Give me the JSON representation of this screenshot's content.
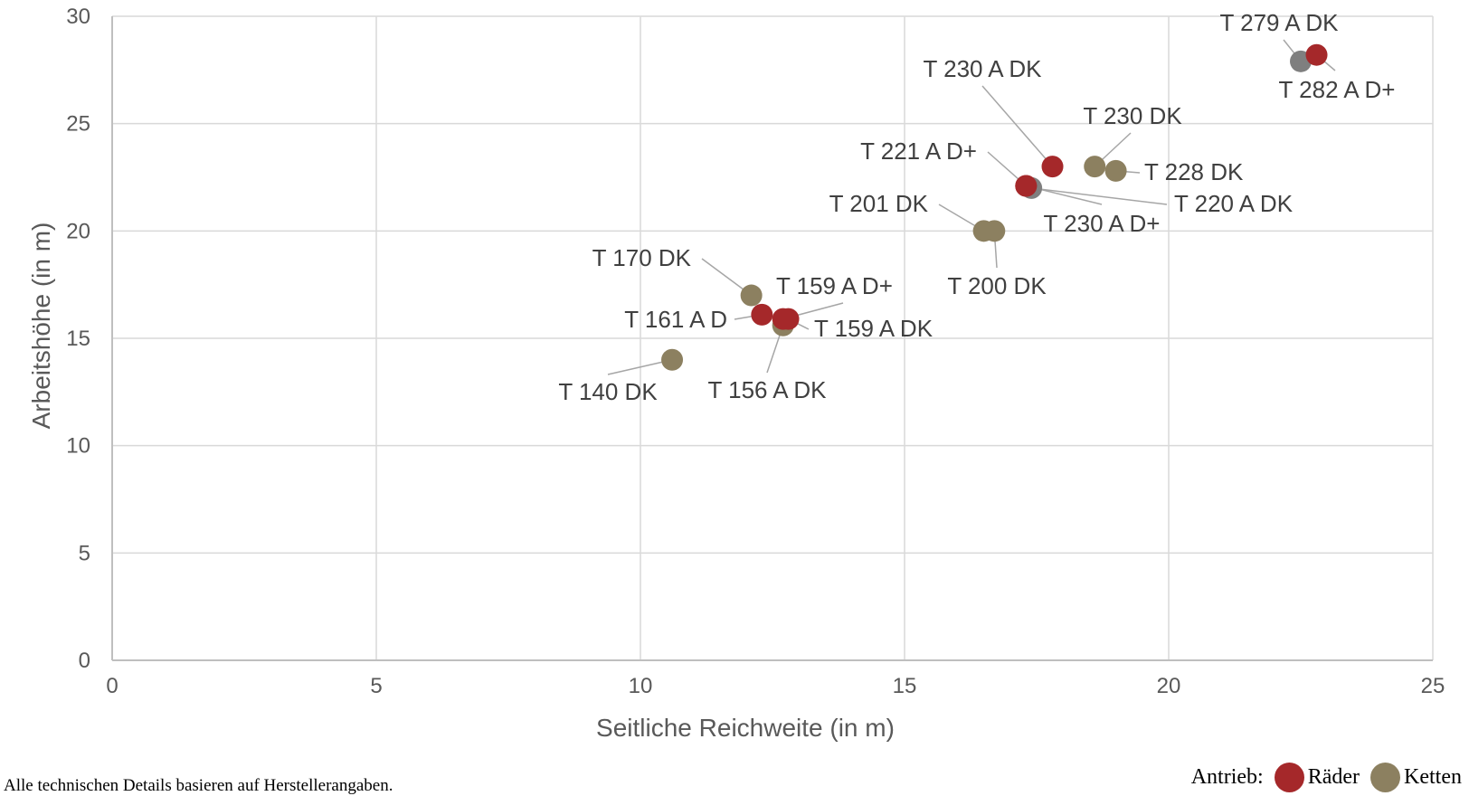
{
  "chart_data": {
    "type": "scatter",
    "title": "",
    "xlabel": "Seitliche Reichweite (in m)",
    "ylabel": "Arbeitshöhe (in m)",
    "xlim": [
      0,
      25
    ],
    "ylim": [
      0,
      30
    ],
    "x_ticks": [
      "0",
      "5",
      "10",
      "15",
      "20",
      "25"
    ],
    "y_ticks": [
      "0",
      "5",
      "10",
      "15",
      "20",
      "25",
      "30"
    ],
    "grid": true,
    "colors": {
      "räder": "#a5282a",
      "ketten": "#8c8060",
      "grau": "#7f7f7f"
    },
    "points": [
      {
        "label": "T 279 A DK",
        "x": 22.5,
        "y": 27.9,
        "drive": "grau"
      },
      {
        "label": "T 282 A D+",
        "x": 22.8,
        "y": 28.2,
        "drive": "räder"
      },
      {
        "label": "T 230 A DK",
        "x": 17.8,
        "y": 23.0,
        "drive": "räder"
      },
      {
        "label": "T 230 DK",
        "x": 18.6,
        "y": 23.0,
        "drive": "ketten"
      },
      {
        "label": "T 228 DK",
        "x": 19.0,
        "y": 22.8,
        "drive": "ketten"
      },
      {
        "label": "T 220 A DK",
        "x": 17.4,
        "y": 22.0,
        "drive": "grau"
      },
      {
        "label": "T 221 A D+",
        "x": 17.3,
        "y": 22.1,
        "drive": "räder"
      },
      {
        "label": "T 230 A D+",
        "x": 17.3,
        "y": 22.1,
        "drive": "räder"
      },
      {
        "label": "T 201 DK",
        "x": 16.5,
        "y": 20.0,
        "drive": "ketten"
      },
      {
        "label": "T 200 DK",
        "x": 16.7,
        "y": 20.0,
        "drive": "ketten"
      },
      {
        "label": "T 170 DK",
        "x": 12.1,
        "y": 17.0,
        "drive": "ketten"
      },
      {
        "label": "T 156 A DK",
        "x": 12.7,
        "y": 15.6,
        "drive": "ketten"
      },
      {
        "label": "T 161 A D",
        "x": 12.3,
        "y": 16.1,
        "drive": "räder"
      },
      {
        "label": "T 159 A D+",
        "x": 12.7,
        "y": 15.9,
        "drive": "räder"
      },
      {
        "label": "T 159 A DK",
        "x": 12.8,
        "y": 15.9,
        "drive": "räder"
      },
      {
        "label": "T 140 DK",
        "x": 10.6,
        "y": 14.0,
        "drive": "ketten"
      }
    ]
  },
  "footer": {
    "note": "Alle technischen Details basieren auf Herstellerangaben.",
    "legend_title": "Antrieb:",
    "legend_items": [
      {
        "label": "Räder",
        "color": "#a5282a"
      },
      {
        "label": "Ketten",
        "color": "#8c8060"
      }
    ]
  }
}
